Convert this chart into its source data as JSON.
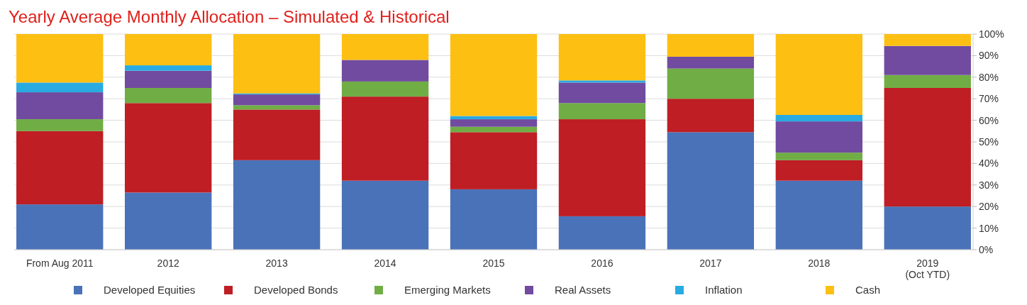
{
  "chart_data": {
    "type": "bar",
    "title": "Yearly Average Monthly Allocation – Simulated & Historical",
    "categories": [
      "From Aug 2011",
      "2012",
      "2013",
      "2014",
      "2015",
      "2016",
      "2017",
      "2018",
      "2019\n(Oct YTD)"
    ],
    "stacked": true,
    "series": [
      {
        "name": "Developed Equities",
        "color": "#4a72b8",
        "values": [
          21,
          26.5,
          41.5,
          32,
          28,
          15.5,
          54.5,
          32,
          20
        ]
      },
      {
        "name": "Developed Bonds",
        "color": "#be1e24",
        "values": [
          34,
          41.5,
          23.5,
          39,
          26.5,
          45,
          15.5,
          9.5,
          55
        ]
      },
      {
        "name": "Emerging Markets",
        "color": "#70ad45",
        "values": [
          5.5,
          7,
          2,
          7,
          2.5,
          7.5,
          14,
          3.5,
          6
        ]
      },
      {
        "name": "Real Assets",
        "color": "#714b9f",
        "values": [
          12.5,
          8,
          5,
          10,
          3.5,
          9.5,
          5.5,
          14.5,
          13.5
        ]
      },
      {
        "name": "Inflation",
        "color": "#29abe2",
        "values": [
          4.5,
          2.5,
          0.5,
          0,
          1.5,
          1,
          0,
          3,
          0
        ]
      },
      {
        "name": "Cash",
        "color": "#fdbf12",
        "values": [
          22.5,
          14.5,
          27.5,
          12,
          38,
          21.5,
          10.5,
          37.5,
          5.5
        ]
      }
    ],
    "ylim": [
      0,
      100
    ],
    "yticks": [
      {
        "value": 0,
        "label": "0%"
      },
      {
        "value": 10,
        "label": "10%"
      },
      {
        "value": 20,
        "label": "20%"
      },
      {
        "value": 30,
        "label": "30%"
      },
      {
        "value": 40,
        "label": "40%"
      },
      {
        "value": 50,
        "label": "50%"
      },
      {
        "value": 60,
        "label": "60%"
      },
      {
        "value": 70,
        "label": "70%"
      },
      {
        "value": 80,
        "label": "80%"
      },
      {
        "value": 90,
        "label": "90%"
      },
      {
        "value": 100,
        "label": "100%"
      }
    ],
    "grid": "y",
    "legend": "bottom"
  }
}
